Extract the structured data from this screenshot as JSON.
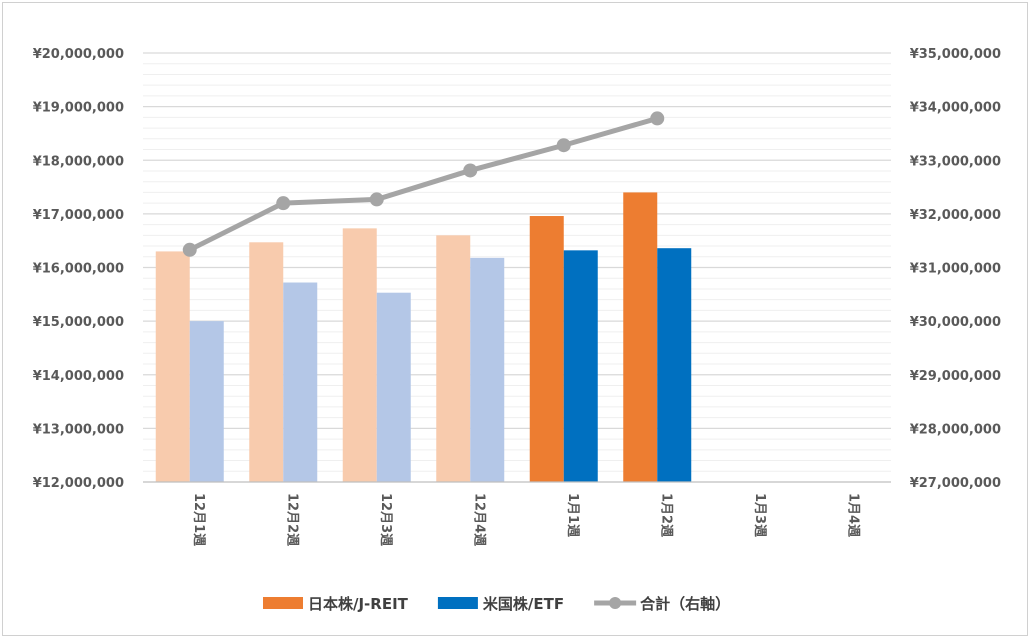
{
  "chart_data": {
    "type": "bar",
    "title": "",
    "categories": [
      "12月1週",
      "12月2週",
      "12月3週",
      "12月4週",
      "1月1週",
      "1月2週",
      "1月3週",
      "1月4週"
    ],
    "series": [
      {
        "name": "日本株/J-REIT",
        "type": "bar",
        "axis": "left",
        "values": [
          16300000,
          16470000,
          16730000,
          16600000,
          16960000,
          17400000,
          null,
          null
        ],
        "color": "#ED7D31",
        "faded_color": "#F8CBAD"
      },
      {
        "name": "米国株/ETF",
        "type": "bar",
        "axis": "left",
        "values": [
          15000000,
          15720000,
          15530000,
          16180000,
          16320000,
          16360000,
          null,
          null
        ],
        "color": "#0070C0",
        "faded_color": "#B4C7E7"
      },
      {
        "name": "合計（右軸）",
        "type": "line",
        "axis": "right",
        "values": [
          31330000,
          32200000,
          32270000,
          32810000,
          33280000,
          33780000,
          null,
          null
        ],
        "color": "#A5A5A5"
      }
    ],
    "highlighted_from_index": 4,
    "left_axis": {
      "ylim": [
        12000000,
        20000000
      ],
      "major_step": 1000000,
      "tick_labels": [
        "¥12,000,000",
        "¥13,000,000",
        "¥14,000,000",
        "¥15,000,000",
        "¥16,000,000",
        "¥17,000,000",
        "¥18,000,000",
        "¥19,000,000",
        "¥20,000,000"
      ]
    },
    "right_axis": {
      "ylim": [
        27000000,
        35000000
      ],
      "major_step": 1000000,
      "tick_labels": [
        "¥27,000,000",
        "¥28,000,000",
        "¥29,000,000",
        "¥30,000,000",
        "¥31,000,000",
        "¥32,000,000",
        "¥33,000,000",
        "¥34,000,000",
        "¥35,000,000"
      ]
    },
    "grid": true,
    "minor_grid": true,
    "legend": {
      "position": "bottom"
    },
    "x_label_rotation": "vertical"
  }
}
